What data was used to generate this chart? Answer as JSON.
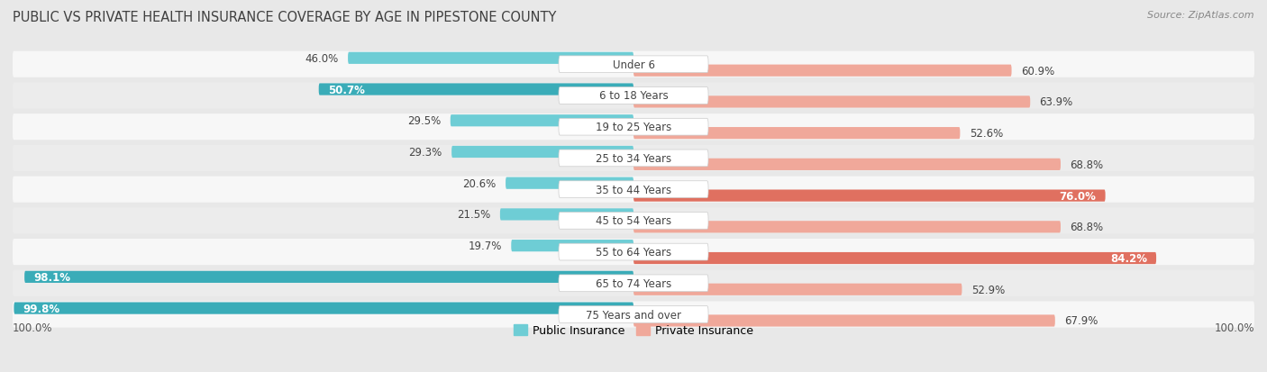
{
  "title": "Public vs Private Health Insurance Coverage by Age in Pipestone County",
  "source": "Source: ZipAtlas.com",
  "categories": [
    "Under 6",
    "6 to 18 Years",
    "19 to 25 Years",
    "25 to 34 Years",
    "35 to 44 Years",
    "45 to 54 Years",
    "55 to 64 Years",
    "65 to 74 Years",
    "75 Years and over"
  ],
  "public_values": [
    46.0,
    50.7,
    29.5,
    29.3,
    20.6,
    21.5,
    19.7,
    98.1,
    99.8
  ],
  "private_values": [
    60.9,
    63.9,
    52.6,
    68.8,
    76.0,
    68.8,
    84.2,
    52.9,
    67.9
  ],
  "public_color_light": "#6ecdd5",
  "public_color_dark": "#3aacb8",
  "private_color_light": "#f0a89a",
  "private_color_dark": "#e07060",
  "row_color_even": "#f7f7f7",
  "row_color_odd": "#ececec",
  "bg_color": "#e8e8e8",
  "label_pill_color": "#ffffff",
  "title_color": "#404040",
  "source_color": "#888888",
  "label_fontsize": 8.5,
  "cat_fontsize": 8.5,
  "title_fontsize": 10.5,
  "source_fontsize": 8
}
